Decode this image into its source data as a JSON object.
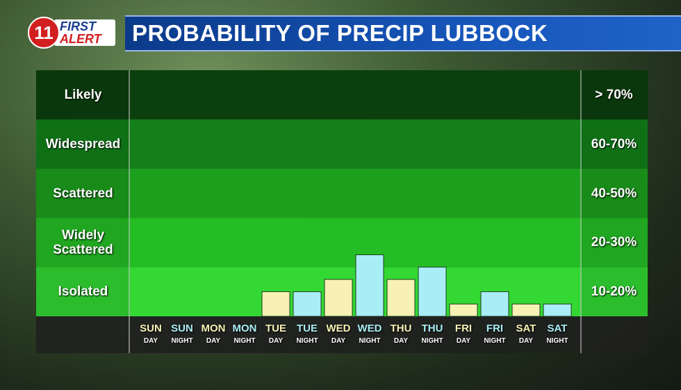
{
  "logo": {
    "number": "11",
    "line1": "FIRST",
    "line2": "ALERT"
  },
  "chart_data": {
    "type": "bar",
    "title": "PROBABILITY OF PRECIP LUBBOCK",
    "categories": [
      "SUN",
      "SUN",
      "MON",
      "MON",
      "TUE",
      "TUE",
      "WED",
      "WED",
      "THU",
      "THU",
      "FRI",
      "FRI",
      "SAT",
      "SAT"
    ],
    "category_sublabels": [
      "DAY",
      "NIGHT",
      "DAY",
      "NIGHT",
      "DAY",
      "NIGHT",
      "DAY",
      "NIGHT",
      "DAY",
      "NIGHT",
      "DAY",
      "NIGHT",
      "DAY",
      "NIGHT"
    ],
    "values": [
      0,
      0,
      0,
      0,
      0.5,
      0.5,
      0.75,
      1.25,
      0.75,
      1.0,
      0.25,
      0.5,
      0.25,
      0.25
    ],
    "colors": [
      "#f7f1b4",
      "#a9eef6",
      "#f7f1b4",
      "#a9eef6",
      "#f7f1b4",
      "#a9eef6",
      "#f7f1b4",
      "#a9eef6",
      "#f7f1b4",
      "#a9eef6",
      "#f7f1b4",
      "#a9eef6",
      "#f7f1b4",
      "#a9eef6"
    ],
    "ylim": [
      0,
      5
    ],
    "yticks": [
      {
        "value": 0.5,
        "label": "Isolated"
      },
      {
        "value": 1.5,
        "label": "Widely Scattered"
      },
      {
        "value": 2.5,
        "label": "Scattered"
      },
      {
        "value": 3.5,
        "label": "Widespread"
      },
      {
        "value": 4.5,
        "label": "Likely"
      }
    ],
    "y2lim": [
      0,
      5
    ],
    "y2ticks": [
      {
        "value": 0.5,
        "label": "10-20%"
      },
      {
        "value": 1.5,
        "label": "20-30%"
      },
      {
        "value": 2.5,
        "label": "40-50%"
      },
      {
        "value": 3.5,
        "label": "60-70%"
      },
      {
        "value": 4.5,
        "label": "> 70%"
      }
    ],
    "band_colors": [
      "#33d833",
      "#25bd25",
      "#1c9f1c",
      "#13801a",
      "#0c3f0e"
    ]
  }
}
